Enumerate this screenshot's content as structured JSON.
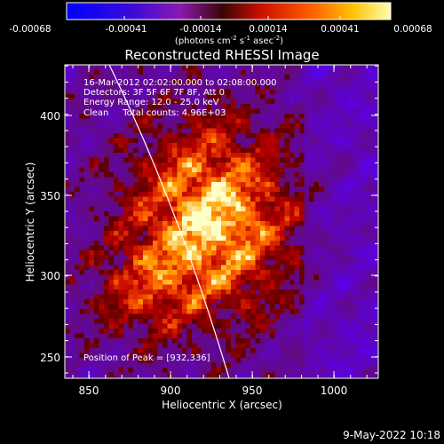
{
  "colorbar": {
    "ticks": [
      "-0.00068",
      "-0.00041",
      "-0.00014",
      "0.00014",
      "0.00041",
      "0.00068"
    ],
    "unit_label": "(photons cm",
    "unit_sup1": "-2",
    "unit_mid": " s",
    "unit_sup2": "-1",
    "unit_end": " asec",
    "unit_sup3": "-2",
    "unit_close": ")"
  },
  "title": "Reconstructed RHESSI Image",
  "annotation": {
    "line1": "16-Mar-2012 02:02:00.000 to 02:08:00.000",
    "line2": "Detectors: 3F 5F 6F 7F 8F, Att 0",
    "line3": "Energy Range: 12.0 - 25.0 keV",
    "line4": "Clean     Total counts: 4.96E+03",
    "peak": "Position of Peak = [932,336]"
  },
  "axes": {
    "xlabel": "Heliocentric X (arcsec)",
    "ylabel": "Heliocentric Y (arcsec)",
    "xticks": [
      "850",
      "900",
      "950",
      "1000"
    ],
    "yticks": [
      "250",
      "300",
      "350",
      "400"
    ],
    "xlim": [
      835,
      1025
    ],
    "ylim": [
      240,
      430
    ]
  },
  "timestamp": "9-May-2022 10:18",
  "colors": {
    "background": "#000000",
    "limb": "#ffffff",
    "axes": "#ffffff"
  }
}
